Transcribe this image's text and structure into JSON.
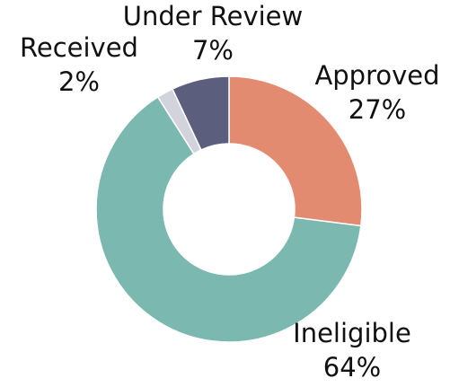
{
  "chart_data": {
    "type": "donut",
    "categories": [
      "Approved",
      "Ineligible",
      "Received",
      "Under Review"
    ],
    "values": [
      27,
      64,
      2,
      7
    ],
    "value_labels": [
      "27%",
      "64%",
      "2%",
      "7%"
    ],
    "colors": [
      "#e38b70",
      "#7ab8b0",
      "#d3d3dd",
      "#5b5e7c"
    ]
  }
}
